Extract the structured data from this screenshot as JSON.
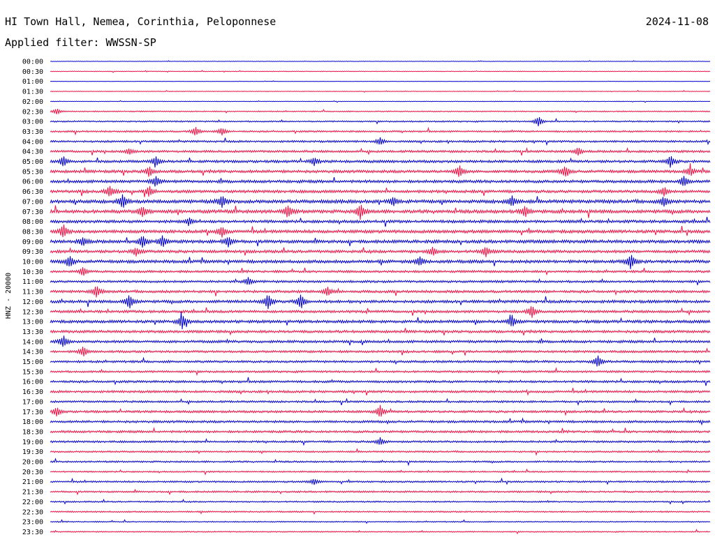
{
  "header": {
    "station": "HI Town Hall, Nemea, Corinthia, Peloponnese",
    "date": "2024-11-08",
    "filter": "Applied filter: WWSSN-SP"
  },
  "chart_data": {
    "type": "line",
    "title": "HI Town Hall, Nemea, Corinthia, Peloponnese",
    "date": "2024-11-08",
    "filter": "Applied filter: WWSSN-SP",
    "ylabel": "HNZ - 20000",
    "line_colors": [
      "#0000cc",
      "#ee1144"
    ],
    "time_labels": [
      "00:00",
      "00:30",
      "01:00",
      "01:30",
      "02:00",
      "02:30",
      "03:00",
      "03:30",
      "04:00",
      "04:30",
      "05:00",
      "05:30",
      "06:00",
      "06:30",
      "07:00",
      "07:30",
      "08:00",
      "08:30",
      "09:00",
      "09:30",
      "10:00",
      "10:30",
      "11:00",
      "11:30",
      "12:00",
      "12:30",
      "13:00",
      "13:30",
      "14:00",
      "14:30",
      "15:00",
      "15:30",
      "16:00",
      "16:30",
      "17:00",
      "17:30",
      "18:00",
      "18:30",
      "19:00",
      "19:30",
      "20:00",
      "20:30",
      "21:00",
      "21:30",
      "22:00",
      "22:30",
      "23:00",
      "23:30"
    ],
    "trace_noise": [
      0.3,
      0.5,
      0.2,
      0.4,
      0.4,
      0.8,
      1.0,
      1.2,
      1.4,
      1.6,
      1.8,
      2.0,
      2.0,
      2.0,
      2.4,
      2.4,
      2.0,
      2.2,
      2.2,
      2.0,
      2.2,
      1.6,
      1.6,
      1.8,
      2.0,
      1.8,
      2.0,
      1.8,
      1.8,
      1.6,
      1.6,
      1.4,
      1.6,
      1.6,
      1.4,
      1.6,
      1.6,
      1.6,
      1.4,
      1.2,
      1.2,
      1.0,
      1.2,
      1.2,
      1.0,
      1.0,
      0.8,
      0.8
    ],
    "events": [
      {
        "row": 5,
        "t": 0.01,
        "amp": 4
      },
      {
        "row": 6,
        "t": 0.74,
        "amp": 7
      },
      {
        "row": 7,
        "t": 0.22,
        "amp": 6
      },
      {
        "row": 7,
        "t": 0.26,
        "amp": 5
      },
      {
        "row": 8,
        "t": 0.5,
        "amp": 5
      },
      {
        "row": 9,
        "t": 0.12,
        "amp": 4
      },
      {
        "row": 9,
        "t": 0.8,
        "amp": 5
      },
      {
        "row": 10,
        "t": 0.02,
        "amp": 7
      },
      {
        "row": 10,
        "t": 0.16,
        "amp": 6
      },
      {
        "row": 10,
        "t": 0.4,
        "amp": 5
      },
      {
        "row": 10,
        "t": 0.94,
        "amp": 8
      },
      {
        "row": 11,
        "t": 0.15,
        "amp": 7
      },
      {
        "row": 11,
        "t": 0.62,
        "amp": 8
      },
      {
        "row": 11,
        "t": 0.78,
        "amp": 7
      },
      {
        "row": 11,
        "t": 0.97,
        "amp": 6
      },
      {
        "row": 12,
        "t": 0.16,
        "amp": 7
      },
      {
        "row": 12,
        "t": 0.96,
        "amp": 7
      },
      {
        "row": 13,
        "t": 0.09,
        "amp": 8
      },
      {
        "row": 13,
        "t": 0.15,
        "amp": 7
      },
      {
        "row": 13,
        "t": 0.93,
        "amp": 6
      },
      {
        "row": 14,
        "t": 0.11,
        "amp": 9
      },
      {
        "row": 14,
        "t": 0.26,
        "amp": 8
      },
      {
        "row": 14,
        "t": 0.52,
        "amp": 6
      },
      {
        "row": 14,
        "t": 0.7,
        "amp": 7
      },
      {
        "row": 14,
        "t": 0.93,
        "amp": 6
      },
      {
        "row": 15,
        "t": 0.14,
        "amp": 7
      },
      {
        "row": 15,
        "t": 0.36,
        "amp": 8
      },
      {
        "row": 15,
        "t": 0.47,
        "amp": 10
      },
      {
        "row": 15,
        "t": 0.72,
        "amp": 7
      },
      {
        "row": 16,
        "t": 0.21,
        "amp": 5
      },
      {
        "row": 17,
        "t": 0.02,
        "amp": 9
      },
      {
        "row": 17,
        "t": 0.26,
        "amp": 7
      },
      {
        "row": 18,
        "t": 0.05,
        "amp": 6
      },
      {
        "row": 18,
        "t": 0.14,
        "amp": 8
      },
      {
        "row": 18,
        "t": 0.17,
        "amp": 8
      },
      {
        "row": 18,
        "t": 0.27,
        "amp": 7
      },
      {
        "row": 19,
        "t": 0.13,
        "amp": 6
      },
      {
        "row": 19,
        "t": 0.58,
        "amp": 6
      },
      {
        "row": 19,
        "t": 0.66,
        "amp": 7
      },
      {
        "row": 20,
        "t": 0.03,
        "amp": 7
      },
      {
        "row": 20,
        "t": 0.56,
        "amp": 6
      },
      {
        "row": 20,
        "t": 0.88,
        "amp": 10
      },
      {
        "row": 21,
        "t": 0.05,
        "amp": 6
      },
      {
        "row": 22,
        "t": 0.3,
        "amp": 5
      },
      {
        "row": 23,
        "t": 0.07,
        "amp": 8
      },
      {
        "row": 23,
        "t": 0.42,
        "amp": 6
      },
      {
        "row": 24,
        "t": 0.12,
        "amp": 10
      },
      {
        "row": 24,
        "t": 0.33,
        "amp": 10
      },
      {
        "row": 24,
        "t": 0.38,
        "amp": 10
      },
      {
        "row": 25,
        "t": 0.73,
        "amp": 8
      },
      {
        "row": 26,
        "t": 0.2,
        "amp": 10
      },
      {
        "row": 26,
        "t": 0.7,
        "amp": 8
      },
      {
        "row": 28,
        "t": 0.02,
        "amp": 8
      },
      {
        "row": 29,
        "t": 0.05,
        "amp": 7
      },
      {
        "row": 30,
        "t": 0.83,
        "amp": 8
      },
      {
        "row": 35,
        "t": 0.01,
        "amp": 6
      },
      {
        "row": 35,
        "t": 0.5,
        "amp": 8
      },
      {
        "row": 38,
        "t": 0.5,
        "amp": 5
      },
      {
        "row": 42,
        "t": 0.4,
        "amp": 4
      }
    ],
    "grid": false
  }
}
